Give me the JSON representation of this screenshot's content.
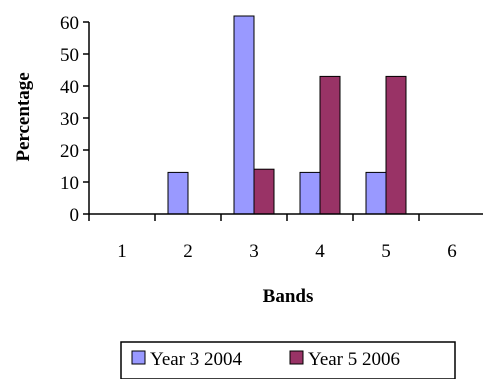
{
  "chart_data": {
    "type": "bar",
    "xlabel": "Bands",
    "ylabel": "Percentage",
    "categories": [
      "1",
      "2",
      "3",
      "4",
      "5",
      "6"
    ],
    "ylim": [
      0,
      60
    ],
    "yticks": [
      "0",
      "10",
      "20",
      "30",
      "40",
      "50",
      "60"
    ],
    "legend_position": "bottom",
    "series": [
      {
        "name": "Year 3 2004",
        "color": "#9999ff",
        "values": [
          0,
          13,
          62,
          13,
          13,
          0
        ]
      },
      {
        "name": "Year 5 2006",
        "color": "#993366",
        "values": [
          0,
          0,
          14,
          43,
          43,
          0
        ]
      }
    ]
  }
}
